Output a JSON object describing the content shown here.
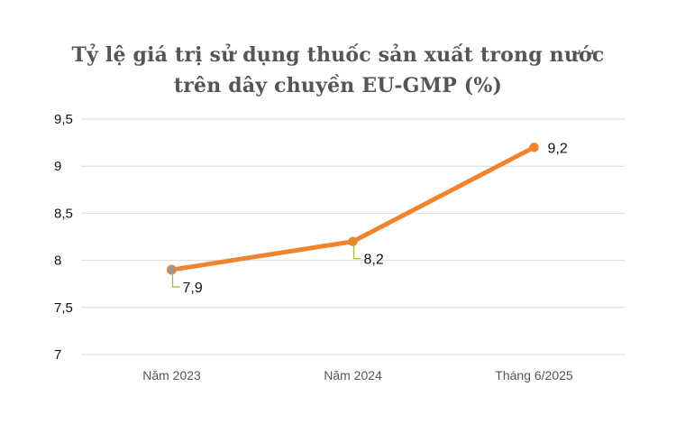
{
  "chart_data": {
    "type": "line",
    "title_line1": "Tỷ lệ giá trị sử dụng thuốc sản xuất trong nước",
    "title_line2": "trên dây chuyền EU-GMP (%)",
    "categories": [
      "Năm 2023",
      "Năm 2024",
      "Tháng 6/2025"
    ],
    "series": [
      {
        "values": [
          7.9,
          8.2,
          9.2
        ],
        "data_labels": [
          "7,9",
          "8,2",
          "9,2"
        ]
      }
    ],
    "y_ticks": [
      "7",
      "7,5",
      "8",
      "8,5",
      "9",
      "9,5"
    ],
    "ylim": [
      7,
      9.5
    ],
    "grid": true,
    "colors": {
      "line": "#f0842c",
      "marker_first": "#7c9cc4",
      "leader": "#8dc63f",
      "grid": "#d9d9d9"
    }
  }
}
